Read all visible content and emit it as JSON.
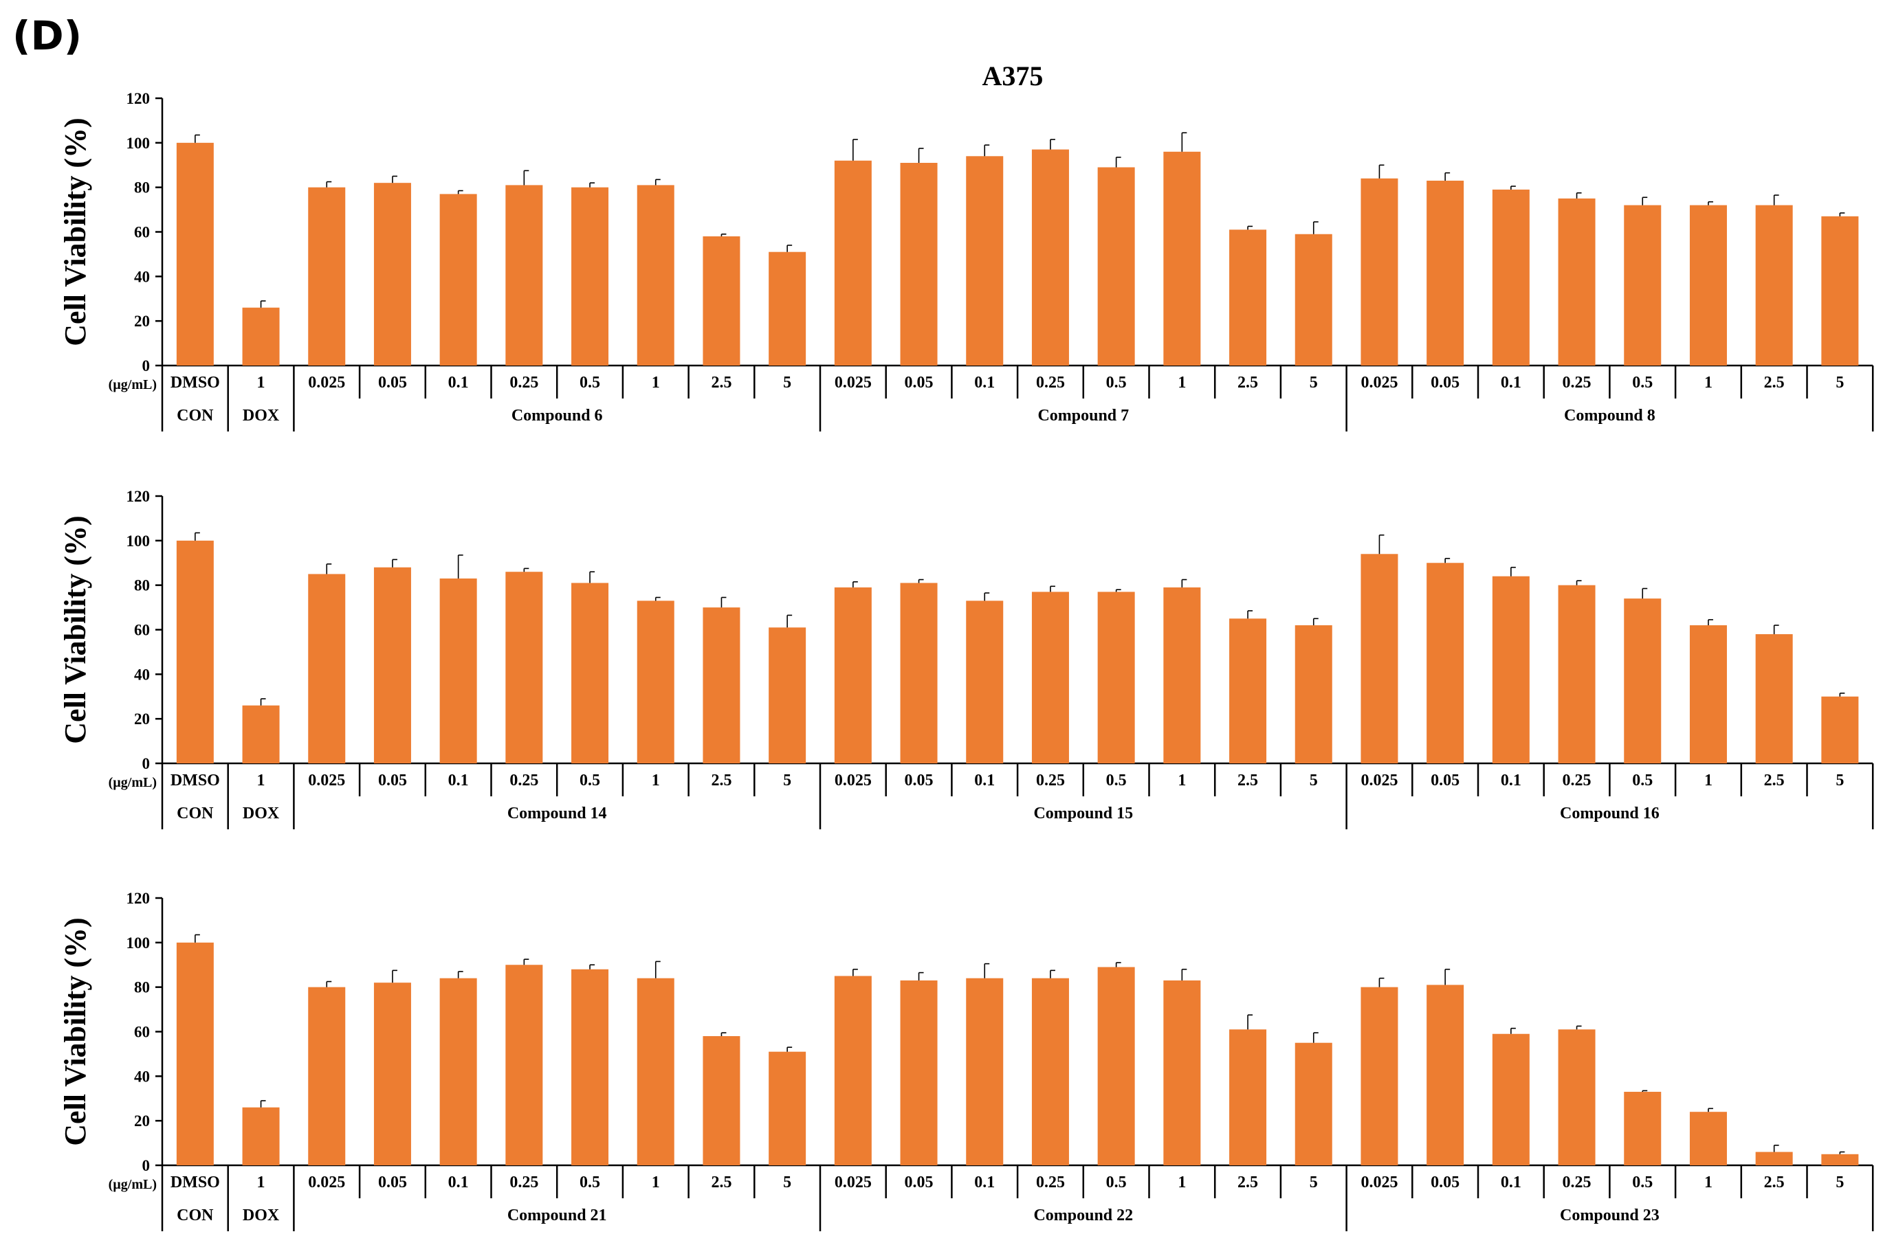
{
  "panel_label": "(D)",
  "title": "A375",
  "ylabel": "Cell Viability (%)",
  "unit_label": "(µg/mL)",
  "yticks": [
    "0",
    "20",
    "40",
    "60",
    "80",
    "100",
    "120"
  ],
  "colors": {
    "bar": "#ED7D31",
    "axis": "#000000"
  },
  "chart_data": [
    {
      "type": "bar",
      "ylabel": "Cell Viability (%)",
      "ylim": [
        0,
        120
      ],
      "categories": [
        "DMSO",
        "1",
        "0.025",
        "0.05",
        "0.1",
        "0.25",
        "0.5",
        "1",
        "2.5",
        "5",
        "0.025",
        "0.05",
        "0.1",
        "0.25",
        "0.5",
        "1",
        "2.5",
        "5",
        "0.025",
        "0.05",
        "0.1",
        "0.25",
        "0.5",
        "1",
        "2.5",
        "5"
      ],
      "groups": [
        {
          "name": "CON",
          "count": 1
        },
        {
          "name": "DOX",
          "count": 1
        },
        {
          "name": "Compound 6",
          "count": 8
        },
        {
          "name": "Compound 7",
          "count": 8
        },
        {
          "name": "Compound 8",
          "count": 8
        }
      ],
      "values": [
        100,
        26,
        80,
        82,
        77,
        81,
        80,
        81,
        58,
        51,
        92,
        91,
        94,
        97,
        89,
        96,
        61,
        59,
        84,
        83,
        79,
        75,
        72,
        72,
        72,
        67
      ],
      "errors": [
        3.5,
        3,
        2.5,
        3,
        1.5,
        6.5,
        2,
        2.5,
        1,
        3,
        9.5,
        6.5,
        5,
        4.5,
        4.5,
        8.5,
        1.5,
        5.5,
        6,
        3.5,
        1.5,
        2.5,
        3.5,
        1.5,
        4.5,
        1.5
      ]
    },
    {
      "type": "bar",
      "ylabel": "Cell Viability (%)",
      "ylim": [
        0,
        120
      ],
      "categories": [
        "DMSO",
        "1",
        "0.025",
        "0.05",
        "0.1",
        "0.25",
        "0.5",
        "1",
        "2.5",
        "5",
        "0.025",
        "0.05",
        "0.1",
        "0.25",
        "0.5",
        "1",
        "2.5",
        "5",
        "0.025",
        "0.05",
        "0.1",
        "0.25",
        "0.5",
        "1",
        "2.5",
        "5"
      ],
      "groups": [
        {
          "name": "CON",
          "count": 1
        },
        {
          "name": "DOX",
          "count": 1
        },
        {
          "name": "Compound 14",
          "count": 8
        },
        {
          "name": "Compound 15",
          "count": 8
        },
        {
          "name": "Compound 16",
          "count": 8
        }
      ],
      "values": [
        100,
        26,
        85,
        88,
        83,
        86,
        81,
        73,
        70,
        61,
        79,
        81,
        73,
        77,
        77,
        79,
        65,
        62,
        94,
        90,
        84,
        80,
        74,
        62,
        58,
        30
      ],
      "errors": [
        3.5,
        3,
        4.5,
        3.5,
        10.5,
        1.5,
        5,
        1.5,
        4.5,
        5.5,
        2.5,
        1.5,
        3.5,
        2.5,
        1,
        3.5,
        3.5,
        3,
        8.5,
        2,
        4,
        2,
        4.5,
        2.5,
        4,
        1.5
      ]
    },
    {
      "type": "bar",
      "ylabel": "Cell Viability (%)",
      "ylim": [
        0,
        120
      ],
      "categories": [
        "DMSO",
        "1",
        "0.025",
        "0.05",
        "0.1",
        "0.25",
        "0.5",
        "1",
        "2.5",
        "5",
        "0.025",
        "0.05",
        "0.1",
        "0.25",
        "0.5",
        "1",
        "2.5",
        "5",
        "0.025",
        "0.05",
        "0.1",
        "0.25",
        "0.5",
        "1",
        "2.5",
        "5"
      ],
      "groups": [
        {
          "name": "CON",
          "count": 1
        },
        {
          "name": "DOX",
          "count": 1
        },
        {
          "name": "Compound 21",
          "count": 8
        },
        {
          "name": "Compound 22",
          "count": 8
        },
        {
          "name": "Compound 23",
          "count": 8
        }
      ],
      "values": [
        100,
        26,
        80,
        82,
        84,
        90,
        88,
        84,
        58,
        51,
        85,
        83,
        84,
        84,
        89,
        83,
        61,
        55,
        80,
        81,
        59,
        61,
        33,
        24,
        6,
        5
      ],
      "errors": [
        3.5,
        3,
        2.5,
        5.5,
        3,
        2.5,
        2,
        7.5,
        1.5,
        2,
        3,
        3.5,
        6.5,
        3.5,
        2,
        5,
        6.5,
        4.5,
        4,
        7,
        2.5,
        1.5,
        0.5,
        1.5,
        3,
        1
      ]
    }
  ]
}
